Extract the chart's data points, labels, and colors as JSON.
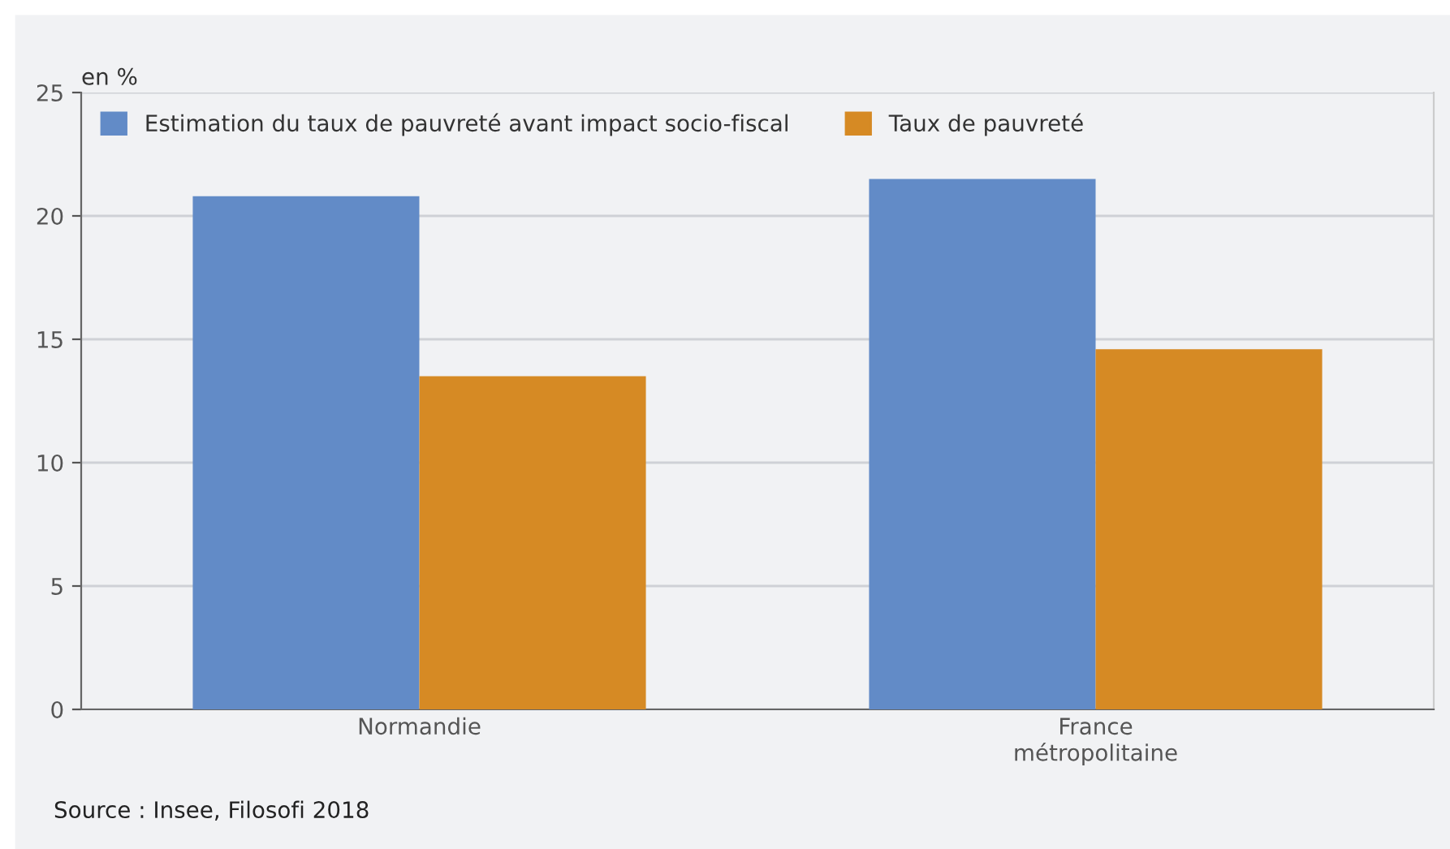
{
  "chart_data": {
    "type": "bar",
    "ylabel": "en %",
    "categories": [
      "Normandie",
      "France\nmétropolitaine"
    ],
    "series": [
      {
        "name": "Estimation du taux de pauvreté avant impact socio-fiscal",
        "color": "#628bc7",
        "values": [
          20.8,
          21.5
        ]
      },
      {
        "name": "Taux de pauvreté",
        "color": "#d68a24",
        "values": [
          13.5,
          14.6
        ]
      }
    ],
    "ylim": [
      0,
      25
    ],
    "yticks": [
      0,
      5,
      10,
      15,
      20,
      25
    ],
    "grid": "y",
    "legend": "top left",
    "annotations": [
      "Source : Insee, Filosofi 2018"
    ]
  }
}
